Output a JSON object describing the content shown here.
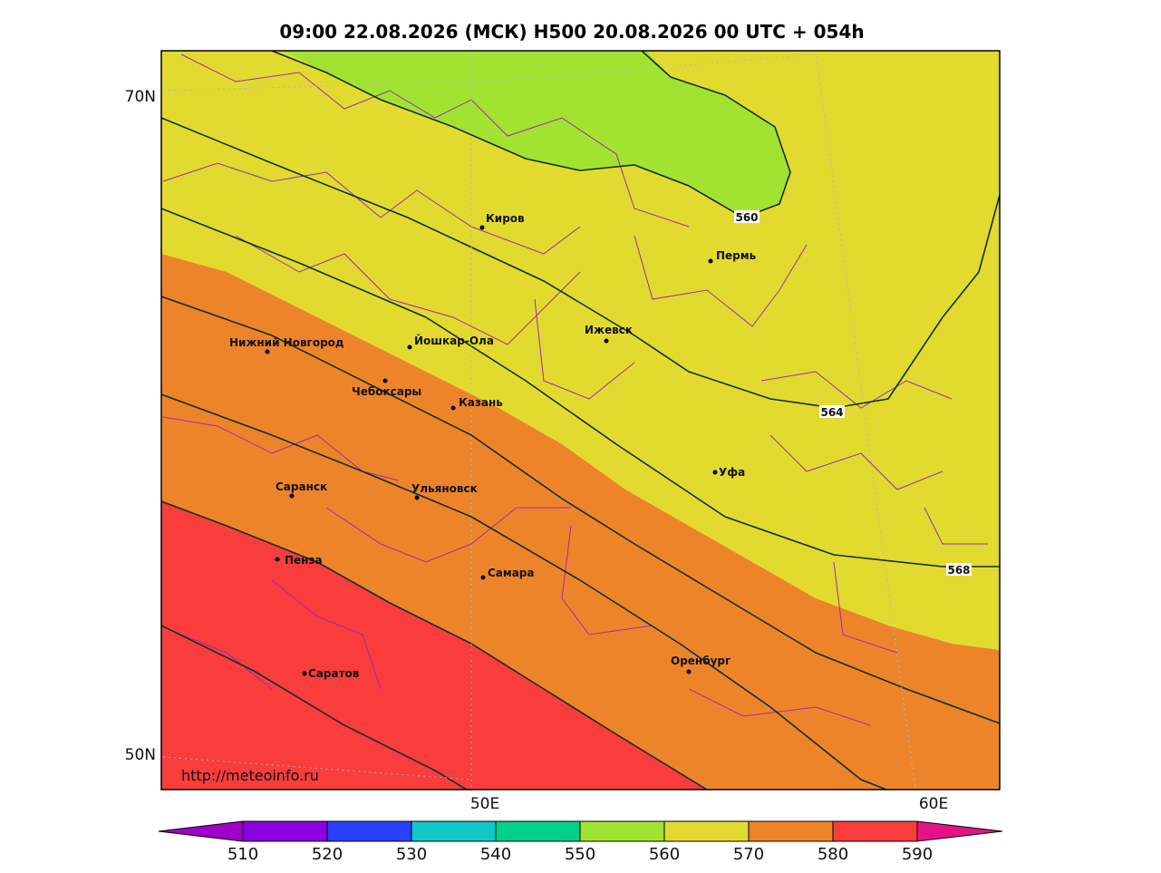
{
  "title": "09:00 22.08.2026 (МСК) H500  20.08.2026 00 UTC + 054h",
  "url": "http://meteoinfo.ru",
  "lat_labels": [
    "70N",
    "50N"
  ],
  "lon_labels": [
    "50E",
    "60E"
  ],
  "cities": [
    "Киров",
    "Пермь",
    "Ижевск",
    "Нижний Новгород",
    "Йошкар-Ола",
    "Чебоксары",
    "Казань",
    "Уфа",
    "Саранск",
    "Ульяновск",
    "Пенза",
    "Самара",
    "Оренбург",
    "Саратов"
  ],
  "contour_labels": [
    "560",
    "564",
    "568"
  ],
  "colorbar_labels": [
    "510",
    "520",
    "530",
    "540",
    "550",
    "560",
    "570",
    "580",
    "590"
  ]
}
